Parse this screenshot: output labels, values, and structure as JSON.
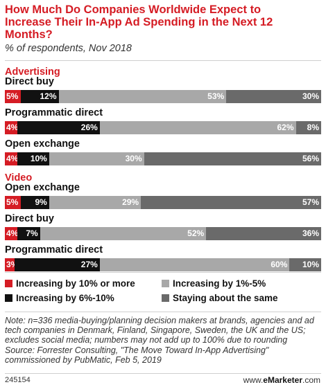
{
  "title": "How Much Do Companies Worldwide Expect to Increase Their In-App Ad Spending in the Next 12 Months?",
  "subtitle": "% of respondents, Nov 2018",
  "colors": {
    "inc10plus": "#d51c24",
    "inc6to10": "#111111",
    "inc1to5": "#a8a8a8",
    "same": "#6a6a6a",
    "accent": "#d51c24"
  },
  "chart_data": {
    "type": "bar",
    "orientation": "horizontal",
    "stacked": true,
    "title": "How Much Do Companies Worldwide Expect to Increase Their In-App Ad Spending in the Next 12 Months?",
    "subtitle": "% of respondents, Nov 2018",
    "groups": [
      {
        "name": "Advertising",
        "rows": [
          {
            "category": "Direct buy",
            "values": [
              5,
              12,
              53,
              30
            ]
          },
          {
            "category": "Programmatic direct",
            "values": [
              4,
              26,
              62,
              8
            ]
          },
          {
            "category": "Open exchange",
            "values": [
              4,
              10,
              30,
              56
            ]
          }
        ]
      },
      {
        "name": "Video",
        "rows": [
          {
            "category": "Open exchange",
            "values": [
              5,
              9,
              29,
              57
            ]
          },
          {
            "category": "Direct buy",
            "values": [
              4,
              7,
              52,
              36
            ]
          },
          {
            "category": "Programmatic direct",
            "values": [
              3,
              27,
              60,
              10
            ]
          }
        ]
      }
    ],
    "series": [
      {
        "name": "Increasing by 10% or more",
        "color": "#d51c24"
      },
      {
        "name": "Increasing by 6%-10%",
        "color": "#111111"
      },
      {
        "name": "Increasing by 1%-5%",
        "color": "#a8a8a8"
      },
      {
        "name": "Staying about the same",
        "color": "#6a6a6a"
      }
    ],
    "xlim": [
      0,
      100
    ],
    "legend_position": "bottom",
    "grid": false
  },
  "legend": [
    "Increasing by 10% or more",
    "Increasing by 1%-5%",
    "Increasing by 6%-10%",
    "Staying about the same"
  ],
  "note": "Note: n=336 media-buying/planning decision makers at brands, agencies and ad tech companies in Denmark, Finland, Singapore, Sweden, the UK and the US; excludes social media; numbers may not add up to 100% due to rounding",
  "source": "Source: Forrester Consulting, \"The Move Toward In-App Advertising\" commissioned by PubMatic, Feb 5, 2019",
  "footer": {
    "id": "245154",
    "site_prefix": "www.",
    "site_brand": "eMarketer",
    "site_suffix": ".com"
  }
}
